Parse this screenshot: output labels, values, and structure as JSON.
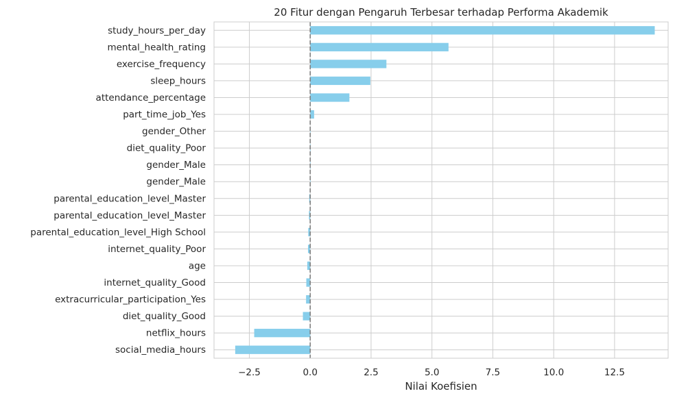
{
  "chart_data": {
    "type": "bar",
    "orientation": "horizontal",
    "title": "20 Fitur dengan Pengaruh Terbesar terhadap Performa Akademik",
    "xlabel": "Nilai Koefisien",
    "ylabel": "",
    "xlim": [
      -3.95,
      14.7
    ],
    "xticks": [
      -2.5,
      0.0,
      2.5,
      5.0,
      7.5,
      10.0,
      12.5
    ],
    "xtick_labels": [
      "−2.5",
      "0.0",
      "2.5",
      "5.0",
      "7.5",
      "10.0",
      "12.5"
    ],
    "grid": true,
    "zero_line": true,
    "bar_color": "#87ceeb",
    "zero_line_color": "#7f7f7f",
    "categories": [
      "study_hours_per_day",
      "mental_health_rating",
      "exercise_frequency",
      "sleep_hours",
      "attendance_percentage",
      "part_time_job_Yes",
      "gender_Other",
      "diet_quality_Poor",
      "gender_Male",
      "gender_Male",
      "parental_education_level_Master",
      "parental_education_level_Master",
      "parental_education_level_High School",
      "internet_quality_Poor",
      "age",
      "internet_quality_Good",
      "extracurricular_participation_Yes",
      "diet_quality_Good",
      "netflix_hours",
      "social_media_hours"
    ],
    "values": [
      14.15,
      5.68,
      3.13,
      2.47,
      1.61,
      0.16,
      0.01,
      0.01,
      0.01,
      0.01,
      -0.04,
      -0.05,
      -0.08,
      -0.09,
      -0.12,
      -0.16,
      -0.17,
      -0.3,
      -2.3,
      -3.08
    ]
  }
}
